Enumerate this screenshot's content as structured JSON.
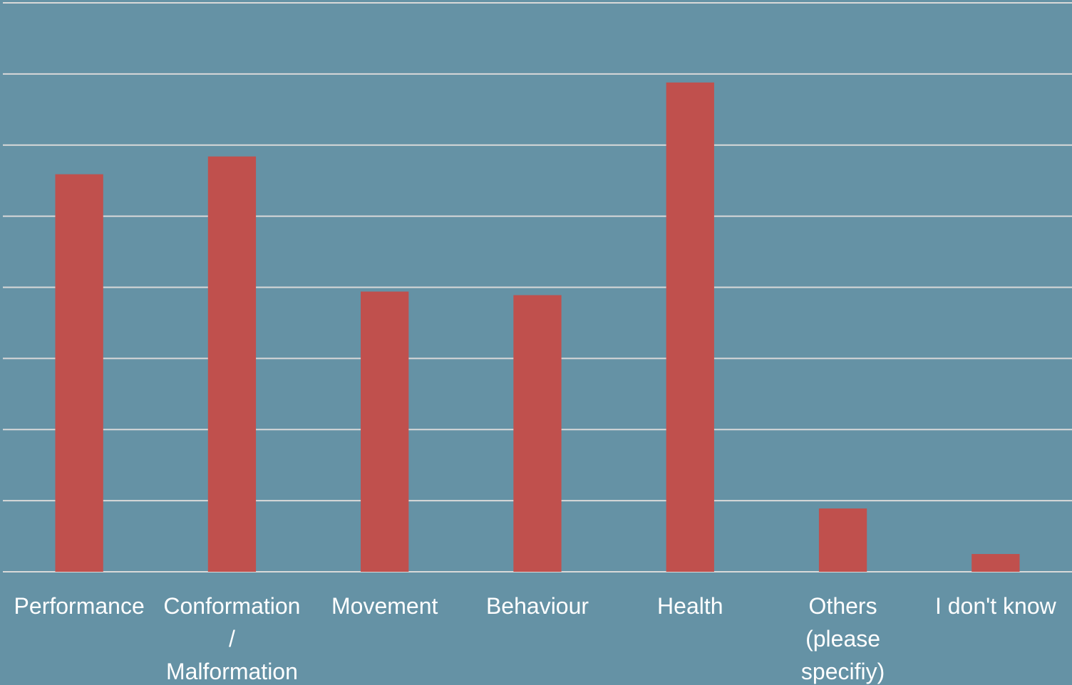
{
  "chart_data": {
    "type": "bar",
    "categories": [
      "Performance",
      "Conformation\n/\nMalformation",
      "Movement",
      "Behaviour",
      "Health",
      "Others\n(please\nspecifiy)",
      "I don't know"
    ],
    "values": [
      5.59,
      5.84,
      3.94,
      3.89,
      6.88,
      0.89,
      0.25
    ],
    "color": "#c0504d",
    "ylim": [
      0,
      8
    ],
    "yticks": [
      0,
      1,
      2,
      3,
      4,
      5,
      6,
      7,
      8
    ],
    "grid": true
  }
}
